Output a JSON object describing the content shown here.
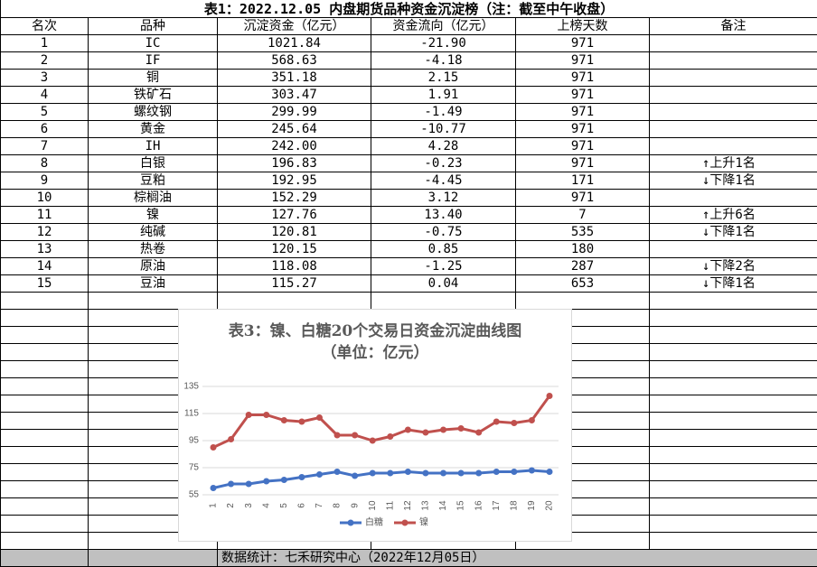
{
  "table": {
    "title": "表1：2022.12.05 内盘期货品种资金沉淀榜（注：截至中午收盘）",
    "header": [
      "名次",
      "品种",
      "沉淀资金（亿元）",
      "资金流向（亿元）",
      "上榜天数",
      "备注"
    ],
    "rows": [
      [
        "1",
        "IC",
        "1021.84",
        "-21.90",
        "971",
        null
      ],
      [
        "2",
        "IF",
        "568.63",
        "-4.18",
        "971",
        null
      ],
      [
        "3",
        "铜",
        "351.18",
        "2.15",
        "971",
        null
      ],
      [
        "4",
        "铁矿石",
        "303.47",
        "1.91",
        "971",
        null
      ],
      [
        "5",
        "螺纹钢",
        "299.99",
        "-1.49",
        "971",
        null
      ],
      [
        "6",
        "黄金",
        "245.64",
        "-10.77",
        "971",
        null
      ],
      [
        "7",
        "IH",
        "242.00",
        "4.28",
        "971",
        null
      ],
      [
        "8",
        "白银",
        "196.83",
        "-0.23",
        "971",
        "↑上升1名"
      ],
      [
        "9",
        "豆粕",
        "192.95",
        "-4.45",
        "171",
        "↓下降1名"
      ],
      [
        "10",
        "棕榈油",
        "152.29",
        "3.12",
        "971",
        null
      ],
      [
        "11",
        "镍",
        "127.76",
        "13.40",
        "7",
        "↑上升6名"
      ],
      [
        "12",
        "纯碱",
        "120.81",
        "-0.75",
        "535",
        "↓下降1名"
      ],
      [
        "13",
        "热卷",
        "120.15",
        "0.85",
        "180",
        null
      ],
      [
        "14",
        "原油",
        "118.08",
        "-1.25",
        "287",
        "↓下降2名"
      ],
      [
        "15",
        "豆油",
        "115.27",
        "0.04",
        "653",
        "↓下降1名"
      ]
    ],
    "footer": "数据统计：七禾研究中心（2022年12月05日）"
  },
  "chart_data": {
    "type": "line",
    "title": "表3：镍、白糖20个交易日资金沉淀曲线图（单位：亿元）",
    "categories": [
      "1",
      "2",
      "3",
      "4",
      "5",
      "6",
      "7",
      "8",
      "9",
      "10",
      "11",
      "12",
      "13",
      "14",
      "15",
      "16",
      "17",
      "18",
      "19",
      "20"
    ],
    "series": [
      {
        "name": "白糖",
        "color": "#4472c4",
        "values": [
          60,
          63,
          63,
          65,
          66,
          68,
          70,
          72,
          69,
          71,
          71,
          72,
          71,
          71,
          71,
          71,
          72,
          72,
          73,
          72
        ]
      },
      {
        "name": "镍",
        "color": "#c0504d",
        "values": [
          90,
          96,
          114,
          114,
          110,
          109,
          112,
          99,
          99,
          95,
          98,
          103,
          101,
          103,
          104,
          101,
          109,
          108,
          110,
          128
        ]
      }
    ],
    "ylim": [
      55,
      135
    ],
    "yticks": [
      55,
      75,
      95,
      115,
      135
    ],
    "grid": true,
    "legend": "bottom"
  }
}
